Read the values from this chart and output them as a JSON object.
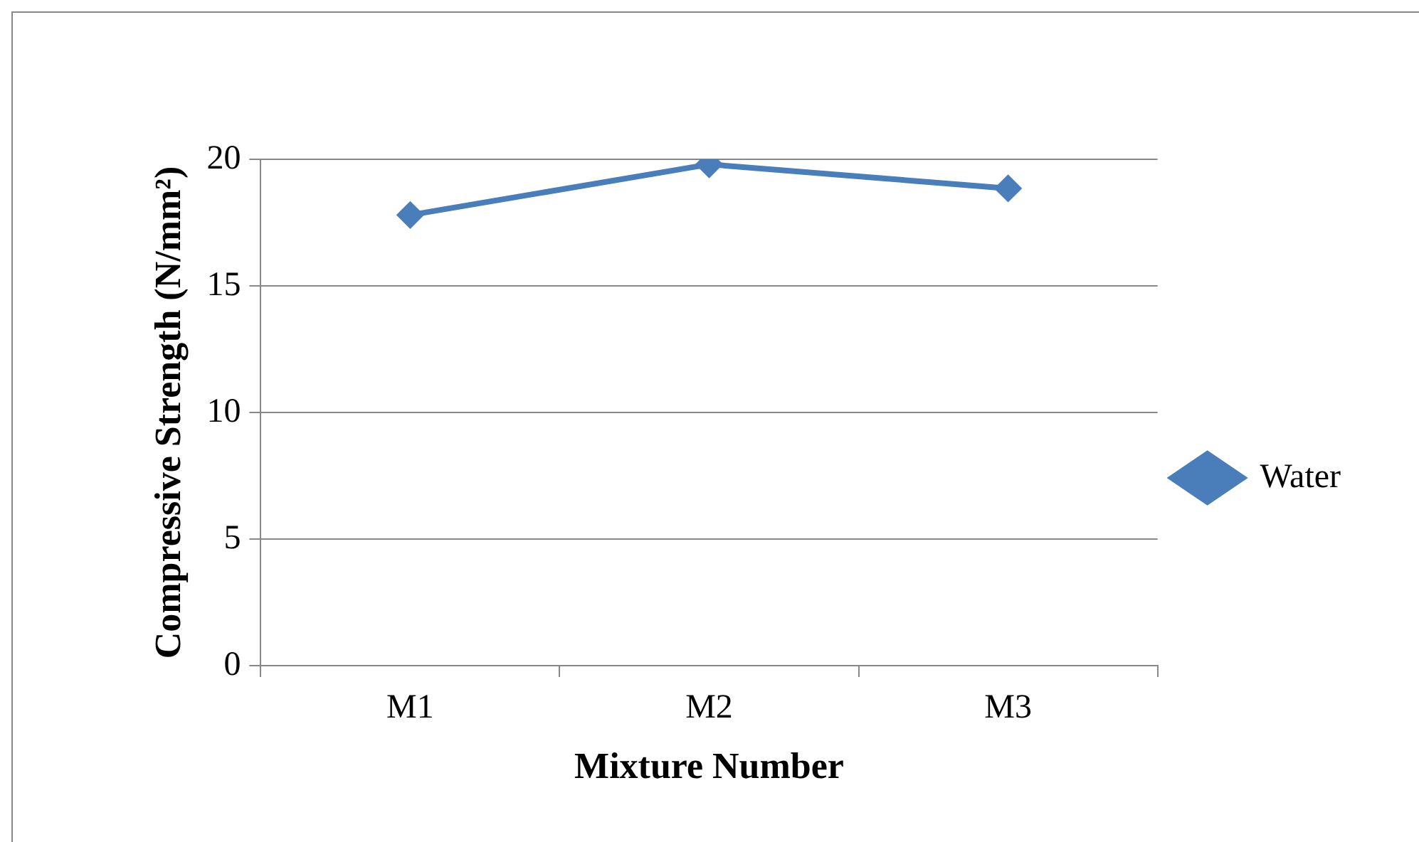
{
  "chart_data": {
    "type": "line",
    "xlabel": "Mixture Number",
    "ylabel": "Compressive Strength (N/mm²)",
    "categories": [
      "M1",
      "M2",
      "M3"
    ],
    "series": [
      {
        "name": "Water",
        "color": "#4a7ebb",
        "values": [
          17.8,
          19.8,
          18.85
        ]
      }
    ],
    "ylim": [
      0,
      20
    ],
    "yticks": [
      0,
      5,
      10,
      15,
      20
    ],
    "grid": "y",
    "legend": "right",
    "marker": "diamond",
    "line_style": "solid"
  }
}
